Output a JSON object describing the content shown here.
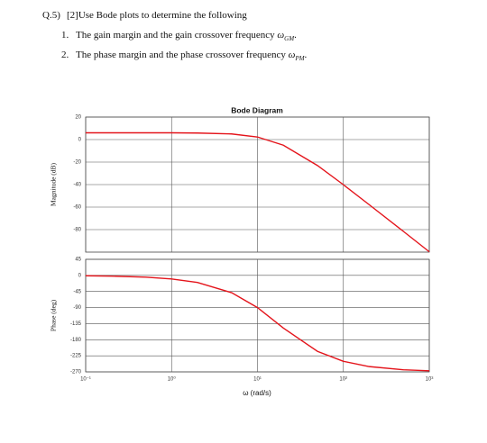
{
  "question": {
    "number": "Q.5)",
    "text": "[2]Use Bode plots to determine the following",
    "items": [
      {
        "number": "1.",
        "text": "The gain margin and the gain crossover frequency",
        "symbol": "ω",
        "subscript": "GM",
        "punctuation": "."
      },
      {
        "number": "2.",
        "text": "The phase margin and the phase crossover frequency",
        "symbol": "ω",
        "subscript": "PM",
        "punctuation": "."
      }
    ]
  },
  "chart_data": {
    "type": "line",
    "title": "Bode Diagram",
    "xlabel": "ω (rad/s)",
    "xscale": "log",
    "grid": true,
    "color": "#e4141b",
    "x": [
      0.1,
      0.2,
      0.5,
      1,
      2,
      5,
      10,
      20,
      50,
      100,
      200,
      500,
      1000
    ],
    "xlim": [
      0.1,
      1000
    ],
    "xticks": [
      {
        "value": 0.1,
        "label": "10⁻¹"
      },
      {
        "value": 1,
        "label": "10⁰"
      },
      {
        "value": 10,
        "label": "10¹"
      },
      {
        "value": 100,
        "label": "10²"
      },
      {
        "value": 1000,
        "label": "10³"
      }
    ],
    "panels": [
      {
        "ylabel": "Magnitude (dB)",
        "ylim": [
          -100,
          20
        ],
        "yticks": [
          20,
          0,
          -20,
          -40,
          -60,
          -80
        ],
        "values": [
          6.0,
          6.0,
          6.0,
          6.0,
          5.8,
          5.0,
          2.3,
          -5.0,
          -23.1,
          -40.1,
          -57.9,
          -81.6,
          -99.7
        ]
      },
      {
        "ylabel": "Phase (deg)",
        "ylim": [
          -270,
          45
        ],
        "yticks": [
          45,
          0,
          -45,
          -90,
          -135,
          -180,
          -225,
          -270
        ],
        "values": [
          -1.0,
          -2.0,
          -5.0,
          -9.9,
          -19.8,
          -48.4,
          -90.1,
          -147.4,
          -212.7,
          -240.5,
          -255.2,
          -264.1,
          -267.0
        ]
      }
    ]
  }
}
